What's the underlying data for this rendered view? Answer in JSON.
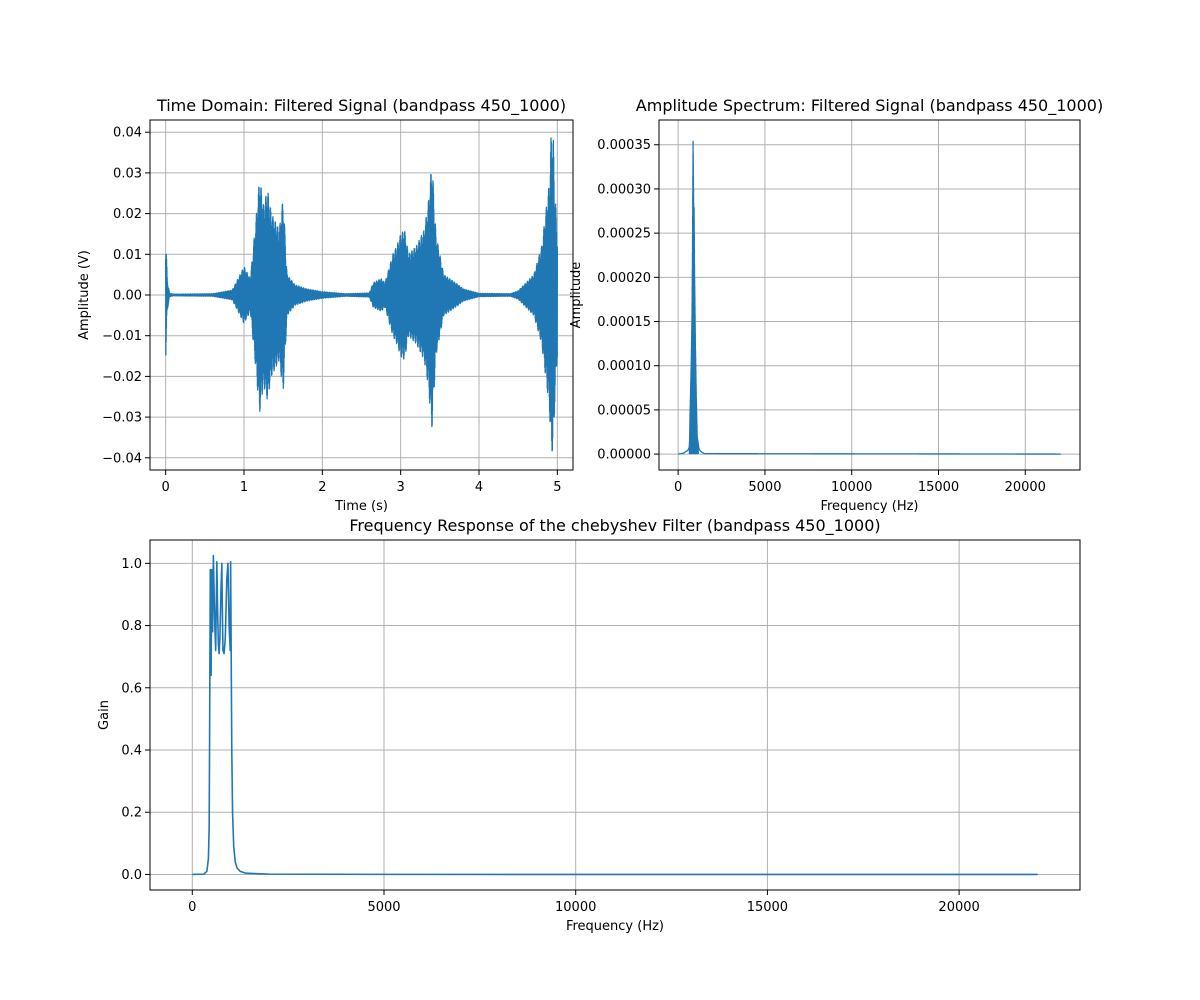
{
  "chart_data": [
    {
      "type": "line",
      "title": "Time Domain: Filtered Signal (bandpass 450_1000)",
      "xlabel": "Time (s)",
      "ylabel": "Amplitude (V)",
      "xlim": [
        -0.2,
        5.2
      ],
      "ylim": [
        -0.043,
        0.043
      ],
      "xticks": [
        0,
        1,
        2,
        3,
        4,
        5
      ],
      "xtick_labels": [
        "0",
        "1",
        "2",
        "3",
        "4",
        "5"
      ],
      "yticks": [
        -0.04,
        -0.03,
        -0.02,
        -0.01,
        0.0,
        0.01,
        0.02,
        0.03,
        0.04
      ],
      "ytick_labels": [
        "−0.04",
        "−0.03",
        "−0.02",
        "−0.01",
        "0.00",
        "0.01",
        "0.02",
        "0.03",
        "0.04"
      ],
      "grid": true,
      "color": "#1f77b4",
      "envelope": {
        "t": [
          0.0,
          0.02,
          0.05,
          0.1,
          0.6,
          0.85,
          0.95,
          1.0,
          1.08,
          1.15,
          1.2,
          1.25,
          1.3,
          1.35,
          1.4,
          1.45,
          1.5,
          1.55,
          1.65,
          1.8,
          2.0,
          2.3,
          2.6,
          2.65,
          2.75,
          2.8,
          2.9,
          2.95,
          3.0,
          3.05,
          3.1,
          3.2,
          3.3,
          3.35,
          3.4,
          3.45,
          3.55,
          3.7,
          3.8,
          4.0,
          4.4,
          4.5,
          4.6,
          4.7,
          4.8,
          4.85,
          4.9,
          4.92,
          4.95,
          4.97,
          5.0
        ],
        "amp": [
          0.016,
          0.004,
          0.0004,
          0.0002,
          0.0003,
          0.0012,
          0.005,
          0.007,
          0.004,
          0.018,
          0.029,
          0.022,
          0.026,
          0.02,
          0.018,
          0.016,
          0.024,
          0.005,
          0.0025,
          0.0015,
          0.0008,
          0.0003,
          0.0005,
          0.003,
          0.004,
          0.003,
          0.01,
          0.012,
          0.015,
          0.016,
          0.01,
          0.012,
          0.016,
          0.022,
          0.033,
          0.015,
          0.005,
          0.003,
          0.0015,
          0.0004,
          0.0003,
          0.001,
          0.003,
          0.005,
          0.012,
          0.02,
          0.028,
          0.039,
          0.038,
          0.025,
          0.015
        ]
      }
    },
    {
      "type": "line",
      "title": "Amplitude Spectrum: Filtered Signal (bandpass 450_1000)",
      "xlabel": "Frequency (Hz)",
      "ylabel": "Amplitude",
      "xlim": [
        -1103,
        23153
      ],
      "ylim": [
        -1.8e-05,
        0.000378
      ],
      "xticks": [
        0,
        5000,
        10000,
        15000,
        20000
      ],
      "xtick_labels": [
        "0",
        "5000",
        "10000",
        "15000",
        "20000"
      ],
      "yticks": [
        0.0,
        5e-05,
        0.0001,
        0.00015,
        0.0002,
        0.00025,
        0.0003,
        0.00035
      ],
      "ytick_labels": [
        "0.00000",
        "0.00005",
        "0.00010",
        "0.00015",
        "0.00020",
        "0.00025",
        "0.00030",
        "0.00035"
      ],
      "grid": true,
      "color": "#1f77b4",
      "peaks": {
        "f": [
          0,
          300,
          450,
          550,
          650,
          700,
          750,
          800,
          830,
          860,
          880,
          900,
          920,
          950,
          1000,
          1050,
          1100,
          1200,
          1300,
          1500,
          22050
        ],
        "amp": [
          0.0,
          1e-06,
          3e-06,
          4e-06,
          8e-06,
          6e-05,
          0.0001,
          0.00016,
          0.00025,
          0.000357,
          0.000315,
          0.00027,
          0.00028,
          0.0002,
          0.00012,
          6e-05,
          2e-05,
          6e-06,
          3e-06,
          5e-07,
          0.0
        ]
      }
    },
    {
      "type": "line",
      "title": "Frequency Response of the chebyshev Filter (bandpass 450_1000)",
      "xlabel": "Frequency (Hz)",
      "ylabel": "Gain",
      "xlim": [
        -1103,
        23153
      ],
      "ylim": [
        -0.05,
        1.075
      ],
      "xticks": [
        0,
        5000,
        10000,
        15000,
        20000
      ],
      "xtick_labels": [
        "0",
        "5000",
        "10000",
        "15000",
        "20000"
      ],
      "yticks": [
        0.0,
        0.2,
        0.4,
        0.6,
        0.8,
        1.0
      ],
      "ytick_labels": [
        "0.0",
        "0.2",
        "0.4",
        "0.6",
        "0.8",
        "1.0"
      ],
      "grid": true,
      "color": "#1f77b4",
      "x": [
        0,
        300,
        380,
        420,
        440,
        450,
        470,
        490,
        510,
        530,
        550,
        570,
        590,
        610,
        640,
        660,
        680,
        700,
        720,
        745,
        770,
        790,
        800,
        830,
        860,
        880,
        900,
        930,
        960,
        990,
        1000,
        1015,
        1030,
        1050,
        1080,
        1120,
        1170,
        1250,
        1400,
        2000,
        5000,
        22050
      ],
      "y": [
        0.0,
        0.001,
        0.01,
        0.05,
        0.15,
        0.4,
        0.98,
        0.64,
        0.98,
        0.78,
        1.025,
        0.9,
        0.79,
        0.72,
        1.005,
        0.85,
        0.74,
        0.71,
        0.76,
        0.9,
        1.0,
        0.8,
        0.72,
        0.71,
        0.76,
        0.85,
        0.95,
        1.0,
        0.8,
        0.72,
        1.005,
        0.7,
        0.4,
        0.2,
        0.09,
        0.04,
        0.02,
        0.01,
        0.004,
        0.001,
        0.0002,
        0.0
      ]
    }
  ]
}
